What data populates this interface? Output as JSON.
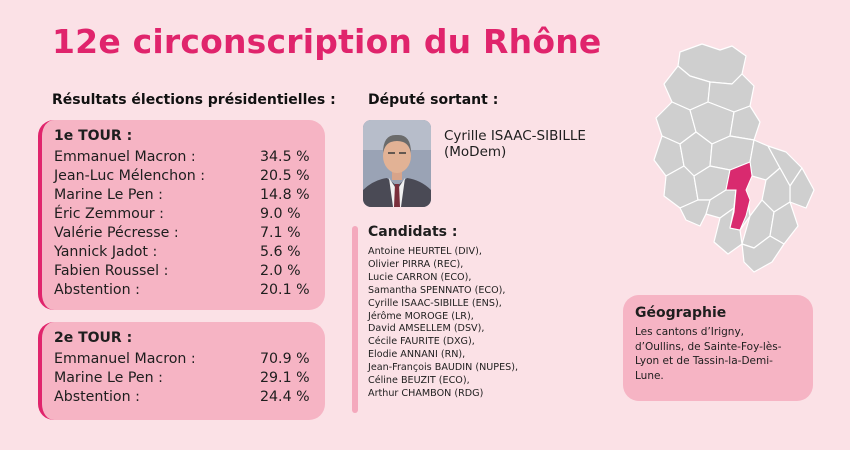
{
  "title": "12e circonscription du Rhône",
  "results": {
    "heading": "Résultats élections présidentielles :",
    "round1": {
      "label": "1e TOUR :",
      "rows": [
        {
          "name": "Emmanuel Macron :",
          "pct": "34.5 %"
        },
        {
          "name": "Jean-Luc Mélenchon :",
          "pct": "20.5 %"
        },
        {
          "name": "Marine Le Pen :",
          "pct": "14.8 %"
        },
        {
          "name": "Éric Zemmour :",
          "pct": "9.0 %"
        },
        {
          "name": "Valérie Pécresse :",
          "pct": "7.1 %"
        },
        {
          "name": "Yannick Jadot :",
          "pct": "5.6 %"
        },
        {
          "name": "Fabien Roussel :",
          "pct": "2.0 %"
        },
        {
          "name": "Abstention :",
          "pct": "20.1 %"
        }
      ]
    },
    "round2": {
      "label": "2e TOUR :",
      "rows": [
        {
          "name": "Emmanuel Macron :",
          "pct": "70.9 %"
        },
        {
          "name": "Marine Le Pen :",
          "pct": "29.1 %"
        },
        {
          "name": "Abstention :",
          "pct": "24.4 %"
        }
      ]
    }
  },
  "deputy": {
    "heading": "Député sortant :",
    "name": "Cyrille ISAAC-SIBILLE",
    "party": "(MoDem)"
  },
  "candidates": {
    "heading": "Candidats :",
    "list": [
      "Antoine HEURTEL (DIV),",
      "Olivier PIRRA (REC),",
      "Lucie CARRON (ECO),",
      "Samantha SPENNATO (ECO),",
      "Cyrille ISAAC-SIBILLE (ENS),",
      "Jérôme MOROGE (LR),",
      "David AMSELLEM (DSV),",
      "Cécile FAURITE (DXG),",
      "Elodie ANNANI (RN),",
      "Jean-François BAUDIN (NUPES),",
      "Céline BEUZIT (ECO),",
      "Arthur CHAMBON (RDG)"
    ]
  },
  "geography": {
    "heading": "Géographie",
    "text_lines": [
      "Les cantons d’Irigny,",
      "d’Oullins, de Sainte-Foy-lès-",
      "Lyon et de Tassin-la-Demi-",
      "Lune."
    ]
  },
  "colors": {
    "accent": "#e0246c",
    "background": "#fbe1e6",
    "box": "#f6b4c4",
    "map_fill": "#cfcfcf",
    "map_highlight": "#d92a6f"
  },
  "icons": {
    "deputy_photo": "portrait-photo",
    "map": "rhone-department-map"
  }
}
